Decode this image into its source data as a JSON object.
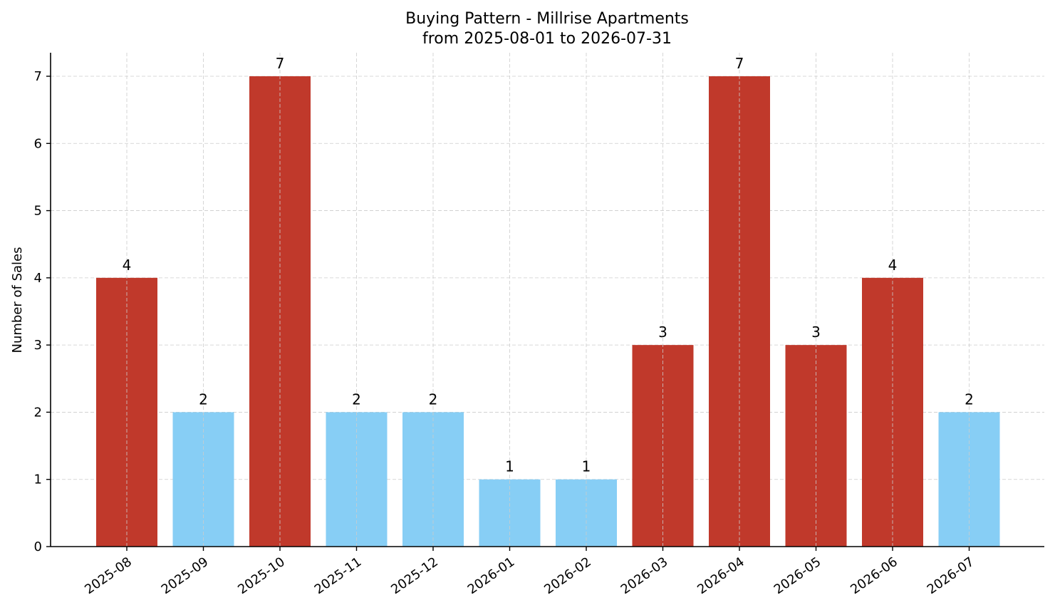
{
  "chart_data": {
    "type": "bar",
    "title_line1": "Buying Pattern - Millrise Apartments",
    "title_line2": "from 2025-08-01 to 2026-07-31",
    "xlabel": "",
    "ylabel": "Number of Sales",
    "categories": [
      "2025-08",
      "2025-09",
      "2025-10",
      "2025-11",
      "2025-12",
      "2026-01",
      "2026-02",
      "2026-03",
      "2026-04",
      "2026-05",
      "2026-06",
      "2026-07"
    ],
    "values": [
      4,
      2,
      7,
      2,
      2,
      1,
      1,
      3,
      7,
      3,
      4,
      2
    ],
    "ylim": [
      0,
      7.35
    ],
    "yticks": [
      0,
      1,
      2,
      3,
      4,
      5,
      6,
      7
    ],
    "grid": true,
    "colors": {
      "high": "#c0392b",
      "low": "#87cef5"
    },
    "high_threshold": 3
  }
}
